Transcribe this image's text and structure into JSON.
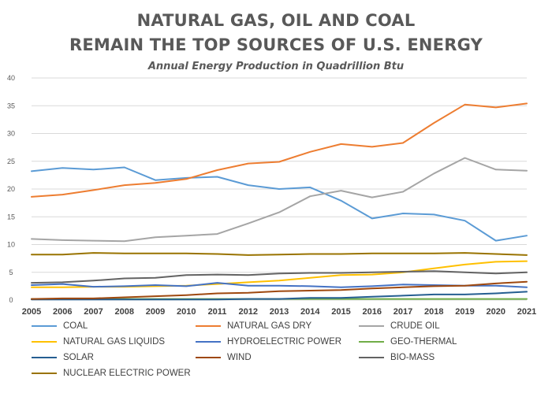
{
  "chart_data": {
    "type": "line",
    "title_line1": "NATURAL GAS, OIL AND COAL",
    "title_line2": "REMAIN THE TOP SOURCES OF U.S. ENERGY",
    "subtitle": "Annual Energy Production in Quadrillion Btu",
    "ylim": [
      0,
      40
    ],
    "yticks": [
      0,
      5,
      10,
      15,
      20,
      25,
      30,
      35,
      40
    ],
    "grid": true,
    "legend_position": "bottom",
    "categories": [
      "2005",
      "2006",
      "2007",
      "2008",
      "2009",
      "2010",
      "2011",
      "2012",
      "2013",
      "2014",
      "2015",
      "2016",
      "2017",
      "2018",
      "2019",
      "2020",
      "2021"
    ],
    "series": [
      {
        "name": "COAL",
        "color": "#5b9bd5",
        "values": [
          23.2,
          23.8,
          23.5,
          23.9,
          21.6,
          22.0,
          22.2,
          20.7,
          20.0,
          20.3,
          17.9,
          14.7,
          15.6,
          15.4,
          14.3,
          10.7,
          11.6
        ]
      },
      {
        "name": "NATURAL GAS DRY",
        "color": "#ed7d31",
        "values": [
          18.6,
          19.0,
          19.8,
          20.7,
          21.1,
          21.8,
          23.4,
          24.6,
          24.9,
          26.7,
          28.1,
          27.6,
          28.3,
          31.9,
          35.2,
          34.7,
          35.4
        ]
      },
      {
        "name": "CRUDE OIL",
        "color": "#a5a5a5",
        "values": [
          11.0,
          10.8,
          10.7,
          10.6,
          11.3,
          11.6,
          11.9,
          13.8,
          15.8,
          18.7,
          19.7,
          18.5,
          19.5,
          22.8,
          25.6,
          23.5,
          23.3
        ]
      },
      {
        "name": "NATURAL GAS LIQUIDS",
        "color": "#ffc000",
        "values": [
          2.3,
          2.3,
          2.4,
          2.4,
          2.5,
          2.6,
          2.9,
          3.2,
          3.5,
          4.0,
          4.5,
          4.6,
          5.0,
          5.7,
          6.4,
          6.9,
          7.0
        ]
      },
      {
        "name": "HYDROELECTRIC POWER",
        "color": "#4472c4",
        "values": [
          2.7,
          2.9,
          2.4,
          2.5,
          2.7,
          2.5,
          3.1,
          2.6,
          2.6,
          2.5,
          2.3,
          2.5,
          2.8,
          2.7,
          2.6,
          2.6,
          2.3
        ]
      },
      {
        "name": "GEO-THERMAL",
        "color": "#70ad47",
        "values": [
          0.2,
          0.2,
          0.2,
          0.2,
          0.2,
          0.2,
          0.2,
          0.2,
          0.2,
          0.2,
          0.2,
          0.2,
          0.2,
          0.2,
          0.2,
          0.2,
          0.2
        ]
      },
      {
        "name": "SOLAR",
        "color": "#255e91",
        "values": [
          0.1,
          0.1,
          0.1,
          0.1,
          0.1,
          0.1,
          0.1,
          0.2,
          0.2,
          0.4,
          0.4,
          0.6,
          0.8,
          1.0,
          1.0,
          1.2,
          1.5
        ]
      },
      {
        "name": "WIND",
        "color": "#9e480e",
        "values": [
          0.2,
          0.3,
          0.3,
          0.5,
          0.7,
          0.9,
          1.2,
          1.3,
          1.6,
          1.7,
          1.8,
          2.1,
          2.3,
          2.5,
          2.6,
          3.0,
          3.3
        ]
      },
      {
        "name": "BIO-MASS",
        "color": "#636363",
        "values": [
          3.1,
          3.2,
          3.5,
          3.9,
          4.0,
          4.5,
          4.6,
          4.5,
          4.8,
          4.9,
          4.9,
          5.0,
          5.1,
          5.2,
          5.0,
          4.8,
          5.0
        ]
      },
      {
        "name": "NUCLEAR ELECTRIC POWER",
        "color": "#997300",
        "values": [
          8.2,
          8.2,
          8.5,
          8.4,
          8.4,
          8.4,
          8.3,
          8.1,
          8.2,
          8.3,
          8.3,
          8.4,
          8.4,
          8.4,
          8.5,
          8.3,
          8.1
        ]
      }
    ]
  }
}
